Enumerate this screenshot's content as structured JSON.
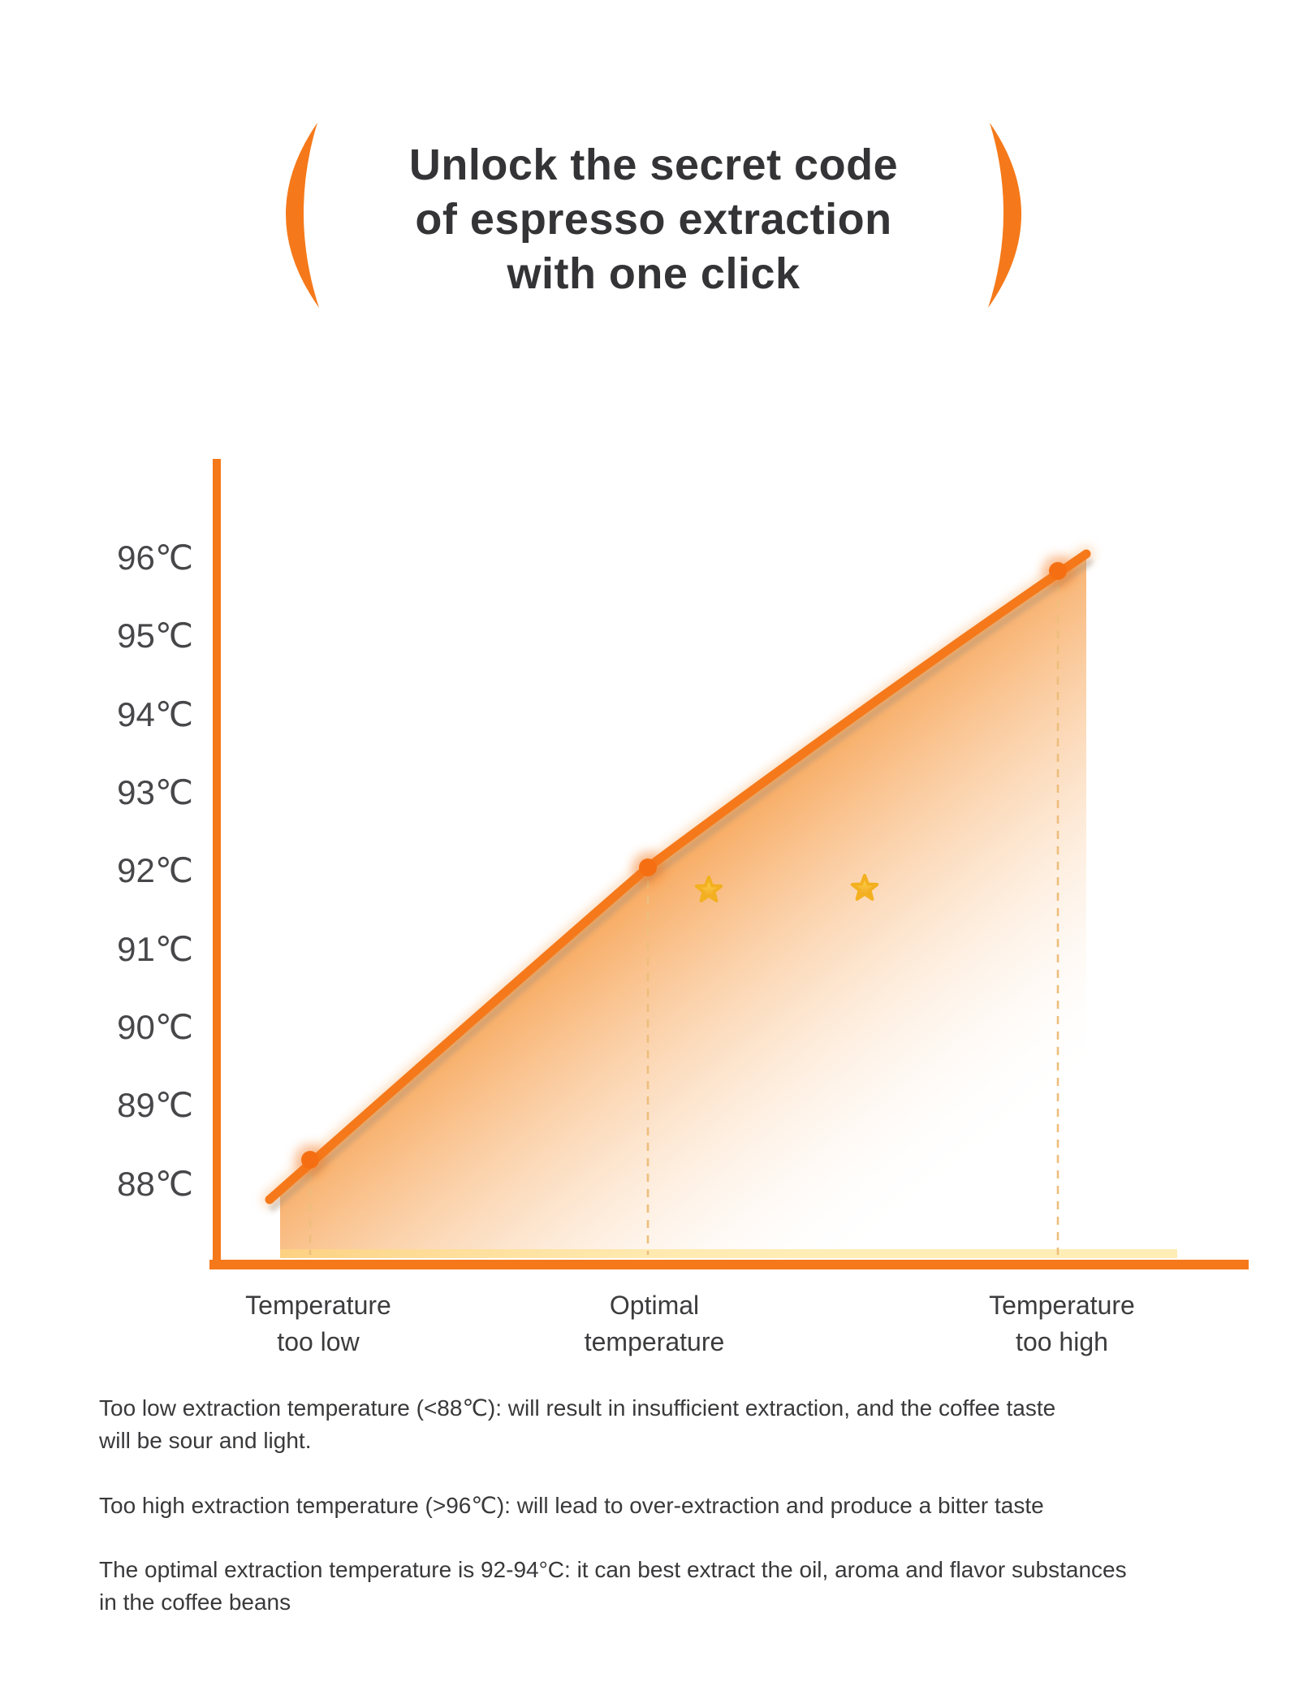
{
  "header": {
    "title_lines": [
      "Unlock the secret code",
      "of espresso extraction",
      "with one click"
    ]
  },
  "chart_data": {
    "type": "area",
    "title": "Espresso extraction temperature curve",
    "unit": "℃",
    "ylim": [
      88,
      96
    ],
    "grid": "off",
    "legend": "none",
    "y_tick_labels": [
      "96℃",
      "95℃",
      "94℃",
      "93℃",
      "92℃",
      "91℃",
      "90℃",
      "89℃",
      "88℃"
    ],
    "x_labels": [
      [
        "Temperature",
        "too low"
      ],
      [
        "Optimal",
        "temperature"
      ],
      [
        "Temperature",
        "too high"
      ]
    ],
    "points": [
      {
        "category": "Temperature too low",
        "value_c": 88
      },
      {
        "category": "Optimal temperature",
        "value_c": 92
      },
      {
        "category": "Temperature too high",
        "value_c": 96
      }
    ],
    "star_markers": 2
  },
  "notes": [
    [
      "Too low extraction temperature (<88℃): will result in insufficient extraction, and the coffee taste",
      "will be sour and light."
    ],
    [
      "Too high extraction temperature (>96℃): will lead to over-extraction and produce a bitter taste"
    ],
    [
      "The optimal extraction temperature is 92-94°C: it can best extract the oil, aroma and flavor substances",
      "in the coffee beans"
    ]
  ],
  "colors": {
    "accent": "#F5791A",
    "accent_deep": "#F56F12",
    "dash": "#EDBE7C",
    "fill_strong": "#F59132",
    "star_top": "#FFDA54",
    "star_bottom": "#F1A01A",
    "title_text": "#343436",
    "body_text": "#39393b"
  }
}
